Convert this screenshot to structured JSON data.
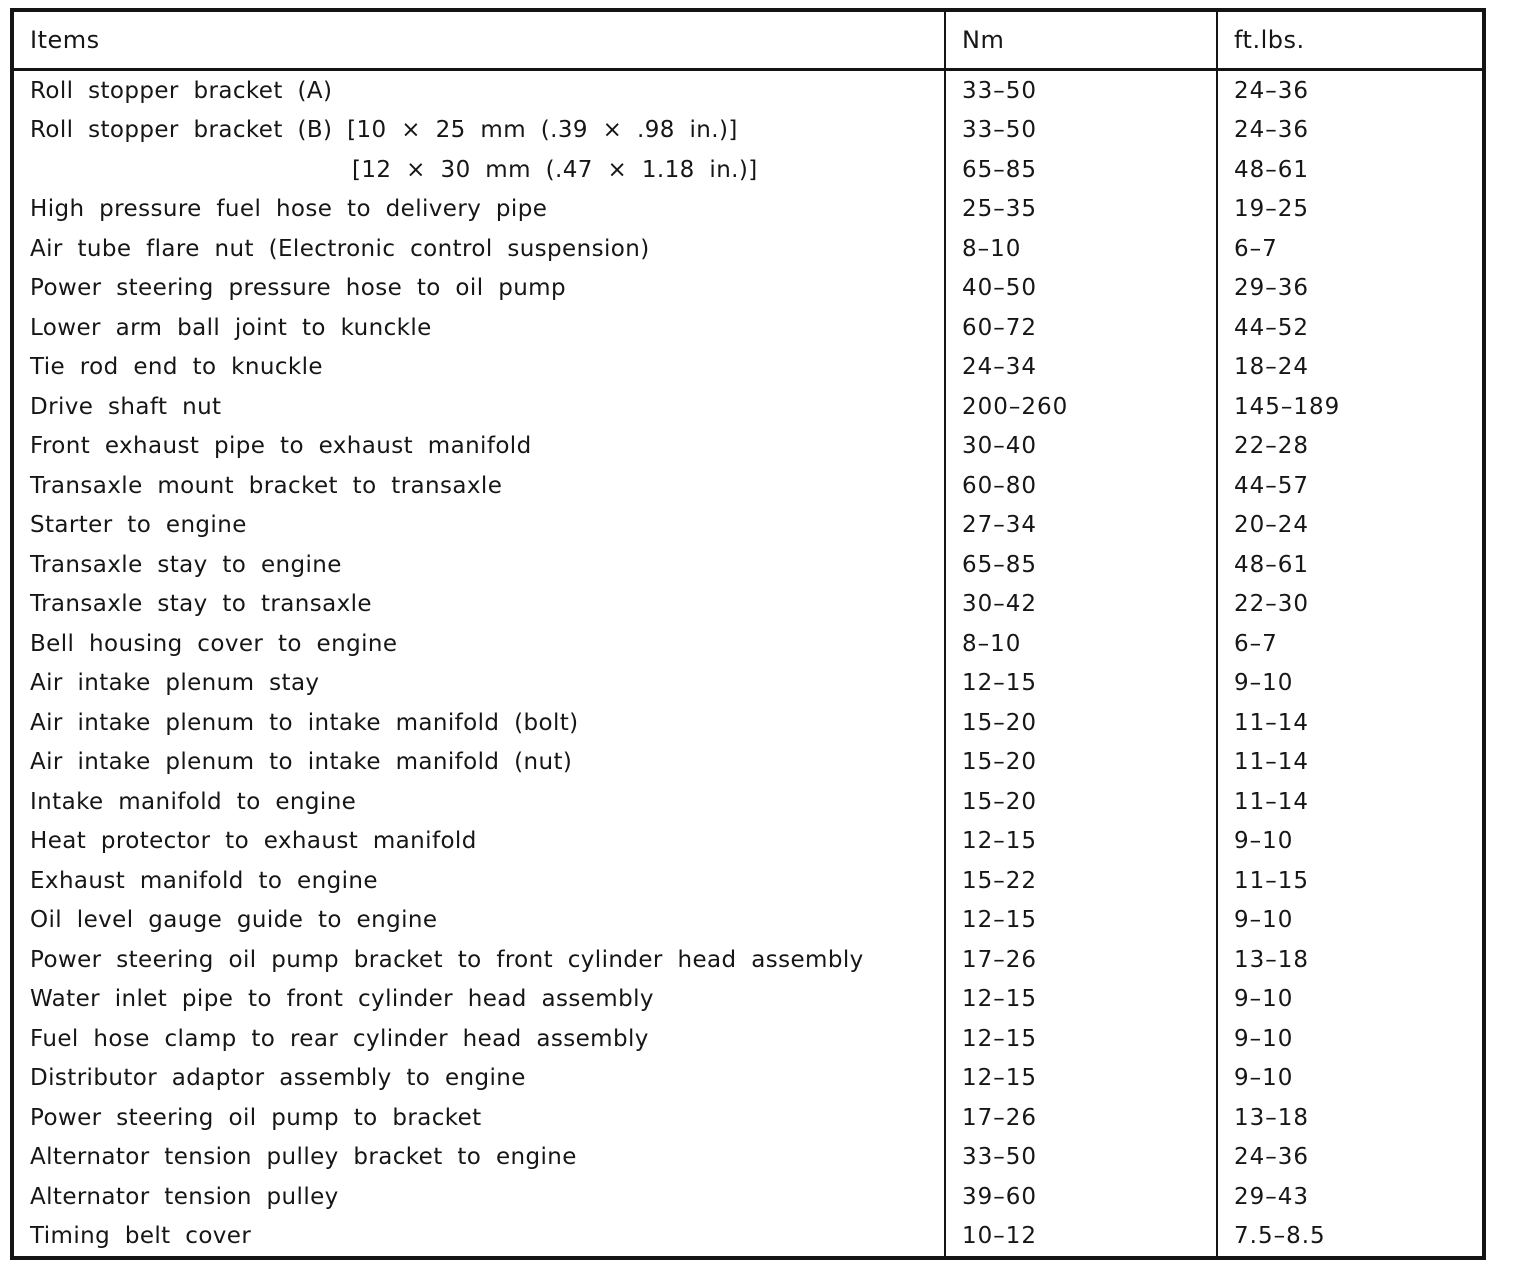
{
  "table": {
    "headers": [
      "Items",
      "Nm",
      "ft.lbs."
    ],
    "rows": [
      {
        "item": "Roll stopper bracket (A)",
        "nm": "33–50",
        "ftlbs": "24–36",
        "indent": false
      },
      {
        "item": "Roll stopper bracket (B) [10 × 25 mm (.39 × .98 in.)]",
        "nm": "33–50",
        "ftlbs": "24–36",
        "indent": false
      },
      {
        "item": "[12 × 30 mm (.47 × 1.18 in.)]",
        "nm": "65–85",
        "ftlbs": "48–61",
        "indent": true
      },
      {
        "item": "High pressure fuel hose to delivery pipe",
        "nm": "25–35",
        "ftlbs": "19–25",
        "indent": false
      },
      {
        "item": "Air tube flare nut (Electronic control suspension)",
        "nm": "8–10",
        "ftlbs": "6–7",
        "indent": false
      },
      {
        "item": "Power steering pressure hose to oil pump",
        "nm": "40–50",
        "ftlbs": "29–36",
        "indent": false
      },
      {
        "item": "Lower arm ball joint to kunckle",
        "nm": "60–72",
        "ftlbs": "44–52",
        "indent": false
      },
      {
        "item": "Tie rod end to knuckle",
        "nm": "24–34",
        "ftlbs": "18–24",
        "indent": false
      },
      {
        "item": "Drive shaft nut",
        "nm": "200–260",
        "ftlbs": "145–189",
        "indent": false
      },
      {
        "item": "Front exhaust pipe to exhaust manifold",
        "nm": "30–40",
        "ftlbs": "22–28",
        "indent": false
      },
      {
        "item": "Transaxle mount bracket to transaxle",
        "nm": "60–80",
        "ftlbs": "44–57",
        "indent": false
      },
      {
        "item": "Starter to engine",
        "nm": "27–34",
        "ftlbs": "20–24",
        "indent": false
      },
      {
        "item": "Transaxle stay to engine",
        "nm": "65–85",
        "ftlbs": "48–61",
        "indent": false
      },
      {
        "item": "Transaxle stay to transaxle",
        "nm": "30–42",
        "ftlbs": "22–30",
        "indent": false
      },
      {
        "item": "Bell housing cover to engine",
        "nm": "8–10",
        "ftlbs": "6–7",
        "indent": false
      },
      {
        "item": "Air intake plenum stay",
        "nm": "12–15",
        "ftlbs": "9–10",
        "indent": false
      },
      {
        "item": "Air intake plenum to intake manifold (bolt)",
        "nm": "15–20",
        "ftlbs": "11–14",
        "indent": false
      },
      {
        "item": "Air intake plenum to intake manifold (nut)",
        "nm": "15–20",
        "ftlbs": "11–14",
        "indent": false
      },
      {
        "item": "Intake manifold to engine",
        "nm": "15–20",
        "ftlbs": "11–14",
        "indent": false
      },
      {
        "item": "Heat protector to exhaust manifold",
        "nm": "12–15",
        "ftlbs": "9–10",
        "indent": false
      },
      {
        "item": "Exhaust manifold to engine",
        "nm": "15–22",
        "ftlbs": "11–15",
        "indent": false
      },
      {
        "item": "Oil level gauge guide to engine",
        "nm": "12–15",
        "ftlbs": "9–10",
        "indent": false
      },
      {
        "item": "Power steering oil pump bracket to front cylinder head assembly",
        "nm": "17–26",
        "ftlbs": "13–18",
        "indent": false
      },
      {
        "item": "Water inlet pipe to front cylinder head assembly",
        "nm": "12–15",
        "ftlbs": "9–10",
        "indent": false
      },
      {
        "item": "Fuel hose clamp to rear cylinder head assembly",
        "nm": "12–15",
        "ftlbs": "9–10",
        "indent": false
      },
      {
        "item": "Distributor adaptor assembly to engine",
        "nm": "12–15",
        "ftlbs": "9–10",
        "indent": false
      },
      {
        "item": "Power steering oil pump to bracket",
        "nm": "17–26",
        "ftlbs": "13–18",
        "indent": false
      },
      {
        "item": "Alternator tension pulley bracket to engine",
        "nm": "33–50",
        "ftlbs": "24–36",
        "indent": false
      },
      {
        "item": "Alternator tension pulley",
        "nm": "39–60",
        "ftlbs": "29–43",
        "indent": false
      },
      {
        "item": "Timing belt cover",
        "nm": "10–12",
        "ftlbs": "7.5–8.5",
        "indent": false
      }
    ]
  }
}
